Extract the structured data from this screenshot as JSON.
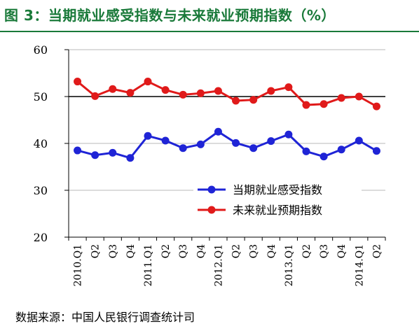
{
  "title": "图 3：当期就业感受指数与未来就业预期指数（%）",
  "source": "数据来源：中国人民银行调查统计司",
  "chart_data": {
    "type": "line",
    "categories": [
      "2010.Q1",
      "Q2",
      "Q3",
      "Q4",
      "2011.Q1",
      "Q2",
      "Q3",
      "Q4",
      "2012.Q1",
      "Q2",
      "Q3",
      "Q4",
      "2013.Q1",
      "Q2",
      "Q3",
      "Q4",
      "2014.Q1",
      "Q2"
    ],
    "yticks": [
      "60",
      "50",
      "40",
      "30",
      "20"
    ],
    "ylim": [
      20,
      60
    ],
    "series": [
      {
        "name": "当期就业感受指数",
        "color": "#1f24d6",
        "values": [
          38.5,
          37.5,
          38.0,
          36.9,
          41.6,
          40.6,
          39.0,
          39.8,
          42.5,
          40.1,
          39.0,
          40.5,
          41.9,
          38.3,
          37.2,
          38.7,
          40.6,
          38.4
        ]
      },
      {
        "name": "未来就业预期指数",
        "color": "#e01a1a",
        "values": [
          53.2,
          50.1,
          51.6,
          50.8,
          53.2,
          51.4,
          50.4,
          50.7,
          51.2,
          49.1,
          49.3,
          51.2,
          52.0,
          48.2,
          48.4,
          49.7,
          50.0,
          47.9
        ]
      }
    ],
    "reference_line": 50,
    "grid": "horizontal"
  }
}
